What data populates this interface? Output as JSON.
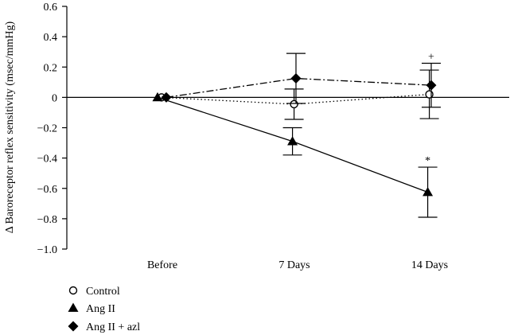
{
  "chart_data": {
    "type": "line",
    "categories": [
      "Before",
      "7 Days",
      "14 Days"
    ],
    "ylabel": "Δ Baroreceptor reflex sensitivity (msec/mmHg)",
    "xlabel": "",
    "ylim": [
      -1.0,
      0.6
    ],
    "yticks": [
      -1.0,
      -0.8,
      -0.6,
      -0.4,
      -0.2,
      0,
      0.2,
      0.4,
      0.6
    ],
    "ytick_labels": [
      "−1.0",
      "−0.8",
      "−0.6",
      "−0.4",
      "−0.2",
      "0",
      "0.2",
      "0.4",
      "0.6"
    ],
    "grid": false,
    "zero_line": true,
    "legend_position": "bottom-left",
    "series": [
      {
        "name": "Control",
        "marker": "circle-open",
        "line_style": "dotted",
        "values": [
          0,
          -0.045,
          0.02
        ],
        "error": [
          0,
          0.1,
          0.16
        ]
      },
      {
        "name": "Ang II",
        "marker": "triangle-filled",
        "line_style": "solid",
        "values": [
          0,
          -0.29,
          -0.625
        ],
        "error": [
          0,
          0.09,
          0.165
        ]
      },
      {
        "name": "Ang II + azl",
        "marker": "diamond-filled",
        "line_style": "dashdot",
        "values": [
          0,
          0.125,
          0.08
        ],
        "error": [
          0,
          0.165,
          0.145
        ]
      }
    ],
    "annotations": [
      {
        "text": "*",
        "category": "14 Days",
        "series": "Ang II"
      },
      {
        "text": "+",
        "category": "14 Days",
        "series": "Ang II + azl"
      }
    ]
  }
}
